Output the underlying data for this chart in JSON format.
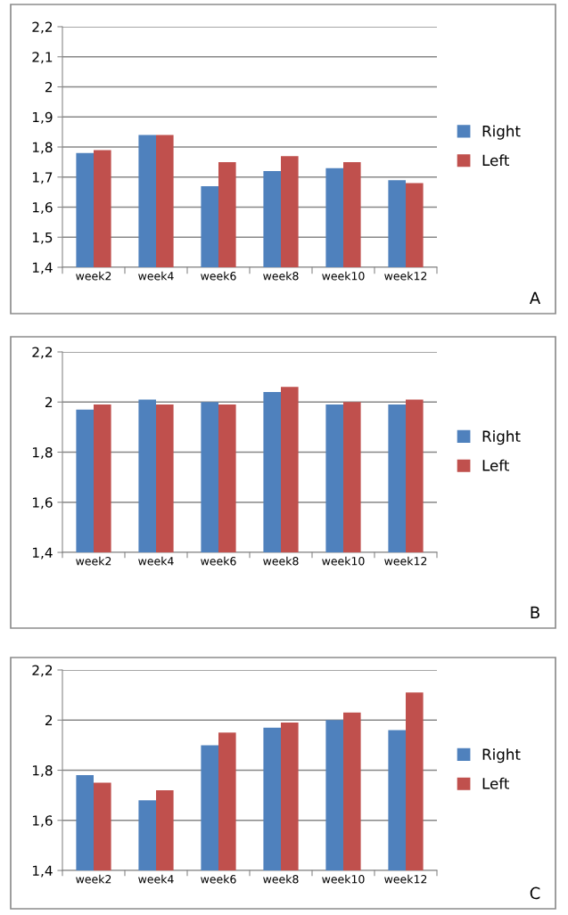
{
  "chart_data": [
    {
      "type": "bar",
      "categories": [
        "week2",
        "week4",
        "week6",
        "week8",
        "week10",
        "week12"
      ],
      "series": [
        {
          "name": "Right",
          "color": "#4f81bd",
          "values": [
            1.78,
            1.84,
            1.67,
            1.72,
            1.73,
            1.69
          ]
        },
        {
          "name": "Left",
          "color": "#c0504d",
          "values": [
            1.79,
            1.84,
            1.75,
            1.77,
            1.75,
            1.68
          ]
        }
      ],
      "ylim": [
        1.4,
        2.2
      ],
      "yticks": [
        {
          "value": 1.4,
          "label": "1,4"
        },
        {
          "value": 1.5,
          "label": "1,5"
        },
        {
          "value": 1.6,
          "label": "1,6"
        },
        {
          "value": 1.7,
          "label": "1,7"
        },
        {
          "value": 1.8,
          "label": "1,8"
        },
        {
          "value": 1.9,
          "label": "1,9"
        },
        2,
        {
          "value": 2.1,
          "label": "2,1"
        },
        {
          "value": 2.2,
          "label": "2,2"
        }
      ],
      "grid": "y",
      "legend": "right",
      "annotations": [
        "A"
      ]
    },
    {
      "type": "bar",
      "categories": [
        "week2",
        "week4",
        "week6",
        "week8",
        "week10",
        "week12"
      ],
      "series": [
        {
          "name": "Right",
          "color": "#4f81bd",
          "values": [
            1.97,
            2.01,
            2.0,
            2.04,
            1.99,
            1.99
          ]
        },
        {
          "name": "Left",
          "color": "#c0504d",
          "values": [
            1.99,
            1.99,
            1.99,
            2.06,
            2.0,
            2.01
          ]
        }
      ],
      "ylim": [
        1.4,
        2.2
      ],
      "yticks": [
        {
          "value": 1.4,
          "label": "1,4"
        },
        {
          "value": 1.6,
          "label": "1,6"
        },
        {
          "value": 1.8,
          "label": "1,8"
        },
        2,
        {
          "value": 2.2,
          "label": "2,2"
        }
      ],
      "grid": "y",
      "legend": "right",
      "annotations": [
        "B"
      ]
    },
    {
      "type": "bar",
      "categories": [
        "week2",
        "week4",
        "week6",
        "week8",
        "week10",
        "week12"
      ],
      "series": [
        {
          "name": "Right",
          "color": "#4f81bd",
          "values": [
            1.78,
            1.68,
            1.9,
            1.97,
            2.0,
            1.96
          ]
        },
        {
          "name": "Left",
          "color": "#c0504d",
          "values": [
            1.75,
            1.72,
            1.95,
            1.99,
            2.03,
            2.11
          ]
        }
      ],
      "ylim": [
        1.4,
        2.2
      ],
      "yticks": [
        {
          "value": 1.4,
          "label": "1,4"
        },
        {
          "value": 1.6,
          "label": "1,6"
        },
        {
          "value": 1.8,
          "label": "1,8"
        },
        2,
        {
          "value": 2.2,
          "label": "2,2"
        }
      ],
      "grid": "y",
      "legend": "right",
      "annotations": [
        "C"
      ]
    }
  ]
}
